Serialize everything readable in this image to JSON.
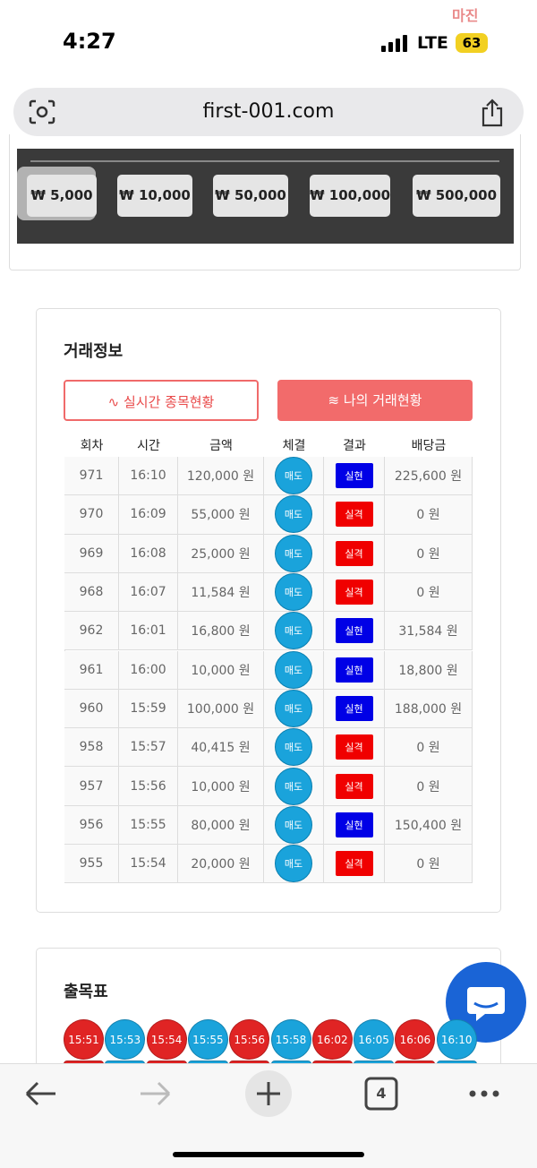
{
  "status_bar": {
    "time": "4:27",
    "network": "LTE",
    "battery": "63",
    "watermark": "마진"
  },
  "browser": {
    "url": "first-001.com",
    "tab_count": "4"
  },
  "amount_buttons": [
    "₩ 5,000",
    "₩ 10,000",
    "₩ 50,000",
    "₩ 100,000",
    "₩ 500,000"
  ],
  "trade_info": {
    "title": "거래정보",
    "tabs": [
      "실시간 종목현황",
      "나의 거래현황"
    ],
    "headers": [
      "회차",
      "시간",
      "금액",
      "체결",
      "결과",
      "배당금"
    ],
    "rows": [
      {
        "cells": [
          "971",
          "16:10",
          "120,000 원",
          "매도",
          "실현",
          "225,600 원"
        ],
        "result_color": "#0000e6"
      },
      {
        "cells": [
          "970",
          "16:09",
          "55,000 원",
          "매도",
          "실격",
          "0 원"
        ],
        "result_color": "#f00000"
      },
      {
        "cells": [
          "969",
          "16:08",
          "25,000 원",
          "매도",
          "실격",
          "0 원"
        ],
        "result_color": "#f00000"
      },
      {
        "cells": [
          "968",
          "16:07",
          "11,584 원",
          "매도",
          "실격",
          "0 원"
        ],
        "result_color": "#f00000"
      },
      {
        "cells": [
          "962",
          "16:01",
          "16,800 원",
          "매도",
          "실현",
          "31,584 원"
        ],
        "result_color": "#0000e6"
      },
      {
        "cells": [
          "961",
          "16:00",
          "10,000 원",
          "매도",
          "실현",
          "18,800 원"
        ],
        "result_color": "#0000e6"
      },
      {
        "cells": [
          "960",
          "15:59",
          "100,000 원",
          "매도",
          "실현",
          "188,000 원"
        ],
        "result_color": "#0000e6"
      },
      {
        "cells": [
          "958",
          "15:57",
          "40,415 원",
          "매도",
          "실격",
          "0 원"
        ],
        "result_color": "#f00000"
      },
      {
        "cells": [
          "957",
          "15:56",
          "10,000 원",
          "매도",
          "실격",
          "0 원"
        ],
        "result_color": "#f00000"
      },
      {
        "cells": [
          "956",
          "15:55",
          "80,000 원",
          "매도",
          "실현",
          "150,400 원"
        ],
        "result_color": "#0000e6"
      },
      {
        "cells": [
          "955",
          "15:54",
          "20,000 원",
          "매도",
          "실격",
          "0 원"
        ],
        "result_color": "#f00000"
      }
    ]
  },
  "results": {
    "title": "출목표",
    "balls": [
      {
        "label": "15:51",
        "color": "#e02424"
      },
      {
        "label": "15:53",
        "color": "#1aa3db"
      },
      {
        "label": "15:54",
        "color": "#e02424"
      },
      {
        "label": "15:55",
        "color": "#1aa3db"
      },
      {
        "label": "15:56",
        "color": "#e02424"
      },
      {
        "label": "15:58",
        "color": "#1aa3db"
      },
      {
        "label": "16:02",
        "color": "#e02424"
      },
      {
        "label": "16:05",
        "color": "#1aa3db"
      },
      {
        "label": "16:06",
        "color": "#e02424"
      },
      {
        "label": "16:10",
        "color": "#1aa3db"
      }
    ]
  }
}
